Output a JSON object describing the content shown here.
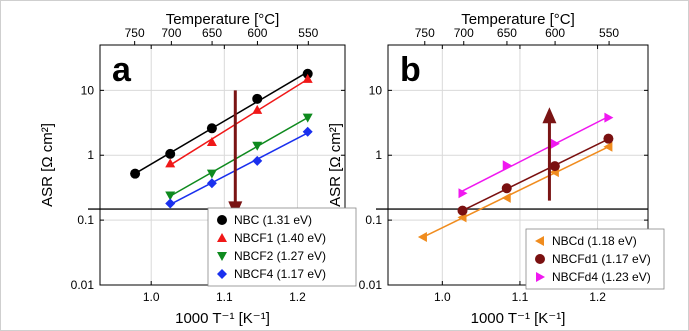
{
  "colors": {
    "frame": "#cfcfcf",
    "panel_bg": "#ffffff",
    "grid": "#d9d9d9",
    "axis": "#000000",
    "arrow": "#7a1414",
    "hline": "#333333"
  },
  "chart_data": [
    {
      "type": "scatter",
      "panel_label": "a",
      "xlabel": "1000 T⁻¹ [K⁻¹]",
      "ylabel": "ASR [Ω cm²]",
      "top_label": "Temperature [°C]",
      "xlim": [
        0.93,
        1.265
      ],
      "ylim": [
        0.01,
        50
      ],
      "y_scale": "log",
      "xticks": [
        1.0,
        1.1,
        1.2
      ],
      "xtick_labels": [
        "1.0",
        "1.1",
        "1.2"
      ],
      "yticks": [
        0.01,
        0.1,
        1,
        10
      ],
      "ytick_labels": [
        "0.01",
        "0.1",
        "1",
        "10"
      ],
      "top_ticks": [
        750,
        700,
        650,
        600,
        550
      ],
      "top_tick_labels": [
        "750",
        "700",
        "650",
        "600",
        "550"
      ],
      "hline_y": 0.148,
      "arrow": {
        "x": 1.115,
        "from_y": 10,
        "to_y": 0.11,
        "direction": "down"
      },
      "legend_position": "bottom-right",
      "series": [
        {
          "name": "NBC (1.31 eV)",
          "marker": "circle",
          "color": "#000000",
          "x": [
            0.978,
            1.026,
            1.083,
            1.145,
            1.214
          ],
          "y": [
            0.52,
            1.05,
            2.6,
            7.4,
            18
          ]
        },
        {
          "name": "NBCF1 (1.40 eV)",
          "marker": "triangle-up",
          "color": "#f01818",
          "x": [
            1.026,
            1.083,
            1.145,
            1.214
          ],
          "y": [
            0.75,
            1.6,
            5.0,
            15
          ]
        },
        {
          "name": "NBCF2 (1.27 eV)",
          "marker": "triangle-down",
          "color": "#0e8a1e",
          "x": [
            1.026,
            1.083,
            1.145,
            1.214
          ],
          "y": [
            0.24,
            0.52,
            1.4,
            3.8
          ]
        },
        {
          "name": "NBCF4 (1.17 eV)",
          "marker": "diamond",
          "color": "#1a30ee",
          "x": [
            1.026,
            1.083,
            1.145,
            1.214
          ],
          "y": [
            0.18,
            0.37,
            0.82,
            2.3
          ]
        }
      ]
    },
    {
      "type": "scatter",
      "panel_label": "b",
      "xlabel": "1000 T⁻¹ [K⁻¹]",
      "ylabel": "ASR [Ω cm²]",
      "top_label": "Temperature [°C]",
      "xlim": [
        0.93,
        1.265
      ],
      "ylim": [
        0.01,
        50
      ],
      "y_scale": "log",
      "xticks": [
        1.0,
        1.1,
        1.2
      ],
      "xtick_labels": [
        "1.0",
        "1.1",
        "1.2"
      ],
      "yticks": [
        0.01,
        0.1,
        1,
        10
      ],
      "ytick_labels": [
        "0.01",
        "0.1",
        "1",
        "10"
      ],
      "top_ticks": [
        750,
        700,
        650,
        600,
        550
      ],
      "top_tick_labels": [
        "750",
        "700",
        "650",
        "600",
        "550"
      ],
      "hline_y": 0.148,
      "arrow": {
        "x": 1.138,
        "from_y": 0.2,
        "to_y": 5.5,
        "direction": "up"
      },
      "legend_position": "bottom-right",
      "series": [
        {
          "name": "NBCd (1.18 eV)",
          "marker": "triangle-left",
          "color": "#f08c1e",
          "x": [
            0.975,
            1.026,
            1.083,
            1.145,
            1.214
          ],
          "y": [
            0.055,
            0.11,
            0.22,
            0.55,
            1.35
          ]
        },
        {
          "name": "NBCFd1 (1.17 eV)",
          "marker": "circle",
          "color": "#7a1010",
          "x": [
            1.026,
            1.083,
            1.145,
            1.214
          ],
          "y": [
            0.14,
            0.31,
            0.68,
            1.8
          ]
        },
        {
          "name": "NBCFd4 (1.23 eV)",
          "marker": "triangle-right",
          "color": "#f018f0",
          "x": [
            1.026,
            1.083,
            1.145,
            1.214
          ],
          "y": [
            0.26,
            0.7,
            1.5,
            3.8
          ]
        }
      ]
    }
  ]
}
